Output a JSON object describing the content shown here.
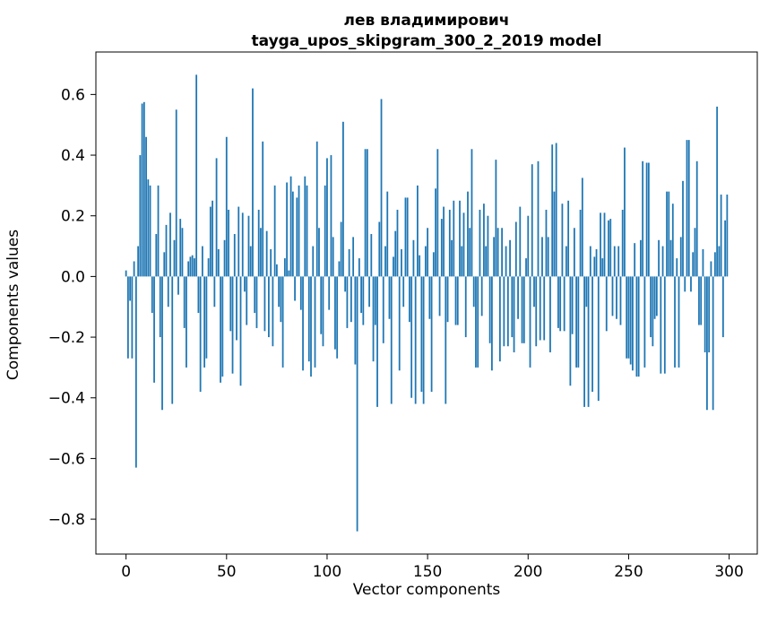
{
  "figure": {
    "title_line1": "лев владимирович",
    "title_line2": "tayga_upos_skipgram_300_2_2019 model",
    "xlabel": "Vector components",
    "ylabel": "Components values"
  },
  "chart_data": {
    "type": "bar",
    "title": "лев владимирович\ntayga_upos_skipgram_300_2_2019 model",
    "xlabel": "Vector components",
    "ylabel": "Components values",
    "legend": null,
    "grid": false,
    "bar_color": "#1f77b4",
    "axis_color": "#000000",
    "xlim": [
      -15,
      314
    ],
    "ylim": [
      -0.915,
      0.74
    ],
    "xticks": [
      0,
      50,
      100,
      150,
      200,
      250,
      300
    ],
    "xtick_labels": [
      "0",
      "50",
      "100",
      "150",
      "200",
      "250",
      "300"
    ],
    "yticks": [
      -0.8,
      -0.6,
      -0.4,
      -0.2,
      0.0,
      0.2,
      0.4,
      0.6
    ],
    "ytick_labels": [
      "−0.8",
      "−0.6",
      "−0.4",
      "−0.2",
      "0.0",
      "0.2",
      "0.4",
      "0.6"
    ],
    "x_start": 0,
    "bar_width_data": 0.8,
    "values": [
      0.02,
      -0.27,
      -0.08,
      -0.27,
      0.05,
      -0.63,
      0.1,
      0.4,
      0.57,
      0.575,
      0.46,
      0.32,
      0.3,
      -0.12,
      -0.35,
      0.14,
      0.3,
      -0.2,
      -0.44,
      0.08,
      0.17,
      -0.1,
      0.21,
      -0.42,
      0.12,
      0.55,
      -0.06,
      0.19,
      0.16,
      -0.17,
      -0.3,
      0.05,
      0.065,
      0.07,
      0.06,
      0.665,
      -0.12,
      -0.38,
      0.1,
      -0.3,
      -0.27,
      0.06,
      0.23,
      0.25,
      -0.1,
      0.39,
      0.09,
      -0.35,
      -0.33,
      0.12,
      0.46,
      0.22,
      -0.18,
      -0.32,
      0.14,
      -0.21,
      0.23,
      -0.36,
      0.21,
      -0.05,
      -0.16,
      0.2,
      0.1,
      0.62,
      -0.12,
      -0.17,
      0.22,
      0.16,
      0.445,
      -0.18,
      0.15,
      -0.2,
      0.09,
      -0.23,
      0.3,
      0.04,
      -0.1,
      -0.15,
      -0.3,
      0.06,
      0.31,
      0.02,
      0.33,
      0.28,
      -0.08,
      0.26,
      0.3,
      -0.11,
      -0.31,
      0.33,
      0.3,
      -0.28,
      -0.33,
      0.1,
      -0.3,
      0.445,
      0.16,
      -0.19,
      -0.23,
      0.3,
      0.39,
      -0.11,
      0.4,
      0.13,
      -0.24,
      -0.27,
      0.05,
      0.18,
      0.51,
      -0.05,
      -0.17,
      0.09,
      -0.15,
      0.13,
      -0.29,
      -0.84,
      0.06,
      -0.12,
      -0.16,
      0.42,
      0.42,
      -0.1,
      0.14,
      -0.28,
      -0.16,
      -0.43,
      0.18,
      0.585,
      -0.22,
      0.1,
      0.28,
      -0.14,
      -0.42,
      0.065,
      0.15,
      0.22,
      -0.31,
      0.09,
      -0.1,
      0.26,
      0.26,
      -0.15,
      -0.4,
      0.12,
      -0.42,
      0.3,
      0.07,
      -0.38,
      -0.42,
      0.1,
      0.16,
      -0.14,
      -0.38,
      0.08,
      0.29,
      0.42,
      -0.13,
      0.19,
      0.23,
      -0.42,
      -0.15,
      0.22,
      0.12,
      0.25,
      -0.16,
      -0.16,
      0.25,
      0.1,
      0.21,
      -0.2,
      0.28,
      0.16,
      0.42,
      -0.1,
      -0.3,
      -0.3,
      0.22,
      -0.13,
      0.24,
      0.1,
      0.2,
      -0.22,
      -0.31,
      0.13,
      0.385,
      0.16,
      -0.28,
      0.16,
      -0.23,
      0.1,
      -0.23,
      0.12,
      -0.2,
      -0.25,
      0.18,
      -0.14,
      0.23,
      -0.22,
      -0.22,
      0.06,
      0.2,
      -0.3,
      0.37,
      -0.1,
      -0.23,
      0.38,
      -0.21,
      0.13,
      -0.21,
      0.22,
      0.13,
      -0.25,
      0.435,
      0.28,
      0.44,
      -0.17,
      -0.18,
      0.24,
      -0.18,
      0.1,
      0.25,
      -0.36,
      -0.19,
      0.16,
      -0.3,
      -0.3,
      0.22,
      0.325,
      -0.43,
      -0.1,
      -0.43,
      0.1,
      -0.38,
      0.065,
      0.09,
      -0.41,
      0.21,
      0.06,
      0.21,
      -0.18,
      0.185,
      0.19,
      -0.13,
      0.1,
      -0.14,
      0.1,
      -0.16,
      0.22,
      0.425,
      -0.27,
      -0.27,
      -0.29,
      -0.31,
      0.11,
      -0.33,
      -0.33,
      0.12,
      0.38,
      -0.3,
      0.375,
      0.375,
      -0.2,
      -0.23,
      -0.14,
      -0.13,
      0.12,
      -0.32,
      0.1,
      -0.32,
      0.28,
      0.28,
      0.12,
      0.24,
      -0.3,
      0.06,
      -0.3,
      0.13,
      0.315,
      -0.05,
      0.45,
      0.45,
      -0.05,
      0.08,
      0.16,
      0.38,
      -0.16,
      -0.16,
      0.09,
      -0.25,
      -0.44,
      -0.25,
      0.05,
      -0.44,
      0.08,
      0.56,
      0.1,
      0.27,
      -0.2,
      0.185,
      0.27
    ]
  }
}
